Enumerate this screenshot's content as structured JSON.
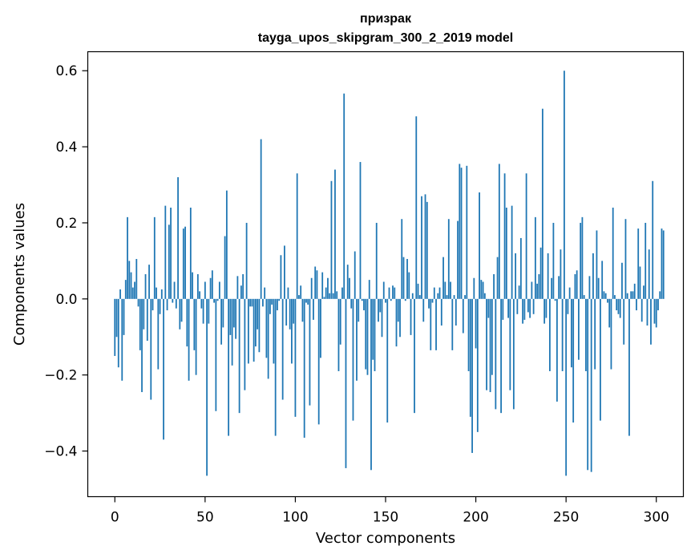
{
  "chart_data": {
    "type": "bar",
    "title_line1": "призрак",
    "title_line2": "tayga_upos_skipgram_300_2_2019 model",
    "xlabel": "Vector components",
    "ylabel": "Components values",
    "xlim": [
      -15,
      315
    ],
    "ylim": [
      -0.52,
      0.65
    ],
    "xticks": [
      0,
      50,
      100,
      150,
      200,
      250,
      300
    ],
    "xtick_labels": [
      "0",
      "50",
      "100",
      "150",
      "200",
      "250",
      "300"
    ],
    "yticks": [
      -0.4,
      -0.2,
      0.0,
      0.2,
      0.4,
      0.6
    ],
    "ytick_labels": [
      "−0.4",
      "−0.2",
      "0.0",
      "0.2",
      "0.4",
      "0.6"
    ],
    "bar_color": "#1f77b4",
    "grid": false,
    "values": [
      -0.15,
      -0.1,
      -0.18,
      0.025,
      -0.215,
      -0.095,
      0.05,
      0.215,
      0.1,
      0.07,
      0.03,
      0.045,
      0.105,
      -0.02,
      -0.135,
      -0.245,
      -0.08,
      0.065,
      -0.11,
      0.09,
      -0.265,
      -0.03,
      0.215,
      0.03,
      -0.185,
      -0.04,
      0.025,
      -0.37,
      0.245,
      -0.03,
      0.195,
      0.24,
      -0.01,
      0.045,
      -0.025,
      0.32,
      -0.08,
      -0.06,
      0.185,
      0.19,
      -0.125,
      -0.215,
      0.24,
      0.07,
      -0.135,
      -0.2,
      0.065,
      0.02,
      -0.025,
      -0.065,
      0.045,
      -0.465,
      -0.065,
      0.055,
      0.075,
      -0.01,
      -0.295,
      -0.005,
      0.045,
      -0.12,
      -0.075,
      0.165,
      0.285,
      -0.36,
      -0.095,
      -0.175,
      -0.075,
      -0.105,
      0.06,
      -0.3,
      0.035,
      0.065,
      -0.24,
      0.2,
      -0.17,
      -0.02,
      -0.02,
      -0.165,
      -0.125,
      -0.08,
      -0.14,
      0.42,
      -0.02,
      0.03,
      -0.155,
      -0.21,
      -0.04,
      -0.015,
      -0.17,
      -0.36,
      -0.03,
      -0.005,
      0.115,
      -0.265,
      0.14,
      -0.07,
      0.03,
      -0.08,
      -0.17,
      -0.065,
      -0.31,
      0.33,
      0.01,
      0.035,
      -0.06,
      -0.365,
      -0.01,
      -0.015,
      -0.28,
      0.055,
      -0.055,
      0.085,
      0.075,
      -0.33,
      -0.155,
      0.07,
      0.005,
      0.03,
      0.055,
      0.015,
      0.31,
      0.015,
      0.34,
      0.02,
      -0.19,
      -0.12,
      0.03,
      0.54,
      -0.445,
      0.09,
      0.055,
      -0.025,
      -0.32,
      0.125,
      -0.215,
      -0.06,
      0.36,
      -0.005,
      -0.03,
      -0.185,
      -0.2,
      0.05,
      -0.45,
      -0.16,
      -0.19,
      0.2,
      -0.06,
      -0.035,
      -0.1,
      0.045,
      -0.01,
      -0.325,
      0.03,
      -0.005,
      0.035,
      0.03,
      -0.125,
      -0.06,
      -0.1,
      0.21,
      0.11,
      -0.005,
      0.105,
      0.07,
      -0.095,
      0.015,
      -0.3,
      0.48,
      0.04,
      0.01,
      0.27,
      -0.06,
      0.275,
      0.255,
      -0.025,
      -0.135,
      -0.01,
      0.03,
      -0.135,
      0.015,
      0.03,
      -0.07,
      0.11,
      0.045,
      0.01,
      0.21,
      0.045,
      -0.135,
      0.01,
      -0.07,
      0.205,
      0.355,
      0.345,
      -0.09,
      0.01,
      0.35,
      -0.19,
      -0.31,
      -0.405,
      0.055,
      -0.13,
      -0.35,
      0.28,
      0.05,
      0.045,
      0.015,
      -0.24,
      -0.05,
      -0.245,
      -0.2,
      0.065,
      -0.29,
      0.11,
      0.355,
      -0.3,
      -0.055,
      0.33,
      0.24,
      -0.05,
      -0.24,
      0.245,
      -0.29,
      0.12,
      -0.04,
      0.035,
      0.16,
      -0.065,
      -0.055,
      0.33,
      -0.035,
      -0.05,
      0.045,
      -0.04,
      0.215,
      0.04,
      0.065,
      0.135,
      0.5,
      -0.065,
      -0.05,
      0.12,
      -0.19,
      0.055,
      0.2,
      -0.005,
      -0.27,
      0.06,
      0.13,
      -0.19,
      0.6,
      -0.465,
      -0.04,
      0.03,
      -0.18,
      -0.325,
      0.065,
      0.075,
      -0.16,
      0.2,
      0.215,
      0.01,
      -0.19,
      -0.45,
      0.06,
      -0.455,
      0.12,
      -0.185,
      0.18,
      0.055,
      -0.32,
      0.1,
      0.02,
      0.015,
      -0.01,
      -0.075,
      -0.185,
      0.24,
      0.01,
      -0.03,
      -0.04,
      -0.05,
      0.095,
      -0.12,
      0.21,
      0.015,
      -0.36,
      0.02,
      0.02,
      0.04,
      -0.03,
      0.185,
      0.085,
      -0.06,
      0.035,
      0.2,
      -0.07,
      0.13,
      -0.12,
      0.31,
      -0.065,
      -0.075,
      -0.03,
      0.02,
      0.185,
      0.18
    ]
  }
}
